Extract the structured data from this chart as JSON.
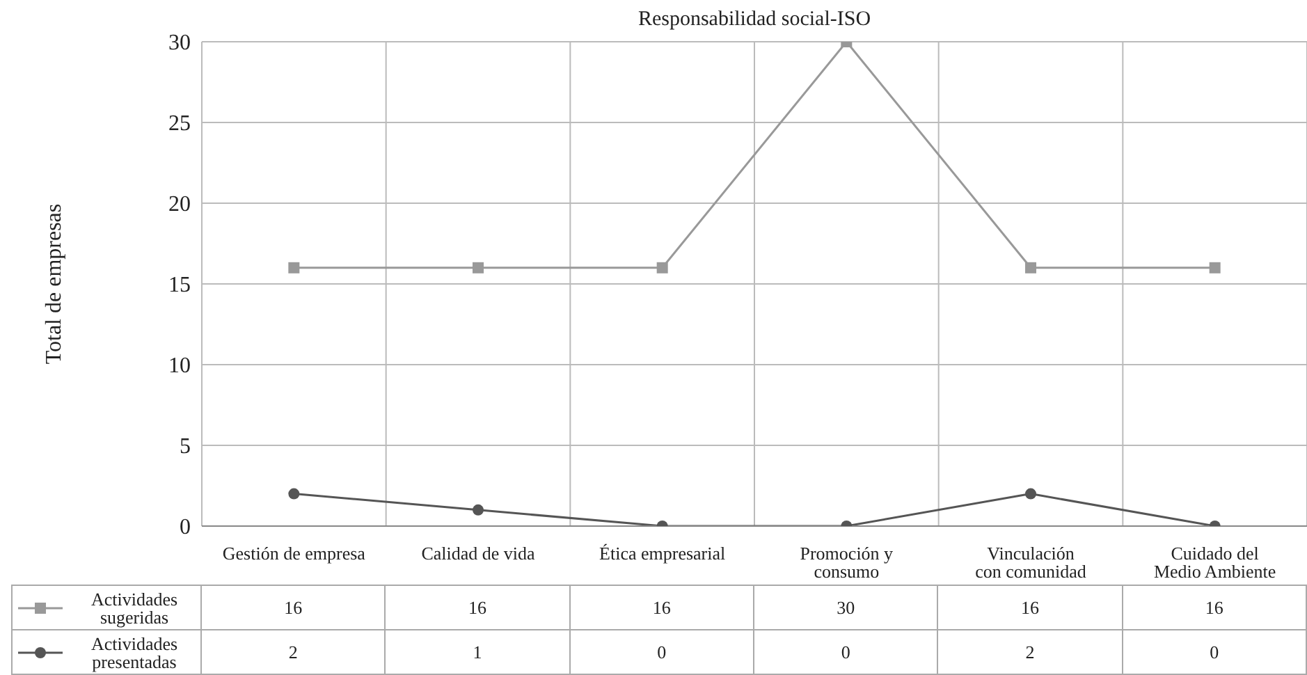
{
  "chart_data": {
    "type": "line",
    "title": "Responsabilidad social-ISO",
    "ylabel": "Total de empresas",
    "categories": [
      "Gestión de empresa",
      "Calidad de vida",
      "Ética empresarial",
      "Promoción y consumo",
      "Vinculación con comunidad",
      "Cuidado del Medio Ambiente"
    ],
    "series": [
      {
        "name": "Actividades sugeridas",
        "color": "#999999",
        "marker": "square",
        "values": [
          16,
          16,
          16,
          30,
          16,
          16
        ]
      },
      {
        "name": "Actividades presentadas",
        "color": "#555555",
        "marker": "circle",
        "values": [
          2,
          1,
          0,
          0,
          2,
          0
        ]
      }
    ],
    "ylim": [
      0,
      30
    ],
    "yticks": [
      0,
      5,
      10,
      15,
      20,
      25,
      30
    ],
    "grid": true,
    "legend": "bottom",
    "data_labels": true
  }
}
